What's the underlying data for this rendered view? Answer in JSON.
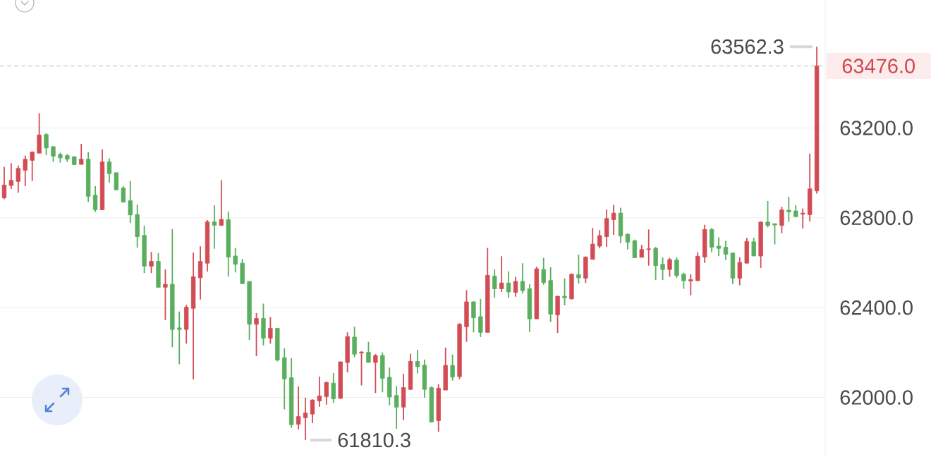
{
  "chart_data": {
    "type": "candlestick",
    "categories": [
      null,
      null,
      null,
      null,
      null,
      null,
      null,
      null,
      null,
      null,
      null,
      null,
      null,
      null,
      null,
      null,
      null,
      null,
      null,
      null,
      null,
      null,
      null,
      null,
      null,
      null,
      null,
      null,
      null,
      null,
      null,
      null,
      null,
      null,
      null,
      null,
      null,
      null,
      null,
      null,
      null,
      null,
      null,
      null,
      null,
      null,
      null,
      null,
      null,
      null,
      null,
      null,
      null,
      null,
      null,
      null,
      null,
      null,
      null,
      null,
      null,
      null,
      null,
      null,
      null,
      null,
      null,
      null,
      null,
      null,
      null,
      null,
      null,
      null,
      null,
      null,
      null,
      null,
      null,
      null,
      null,
      null,
      null,
      null,
      null,
      null,
      null,
      null,
      null,
      null,
      null,
      null,
      null,
      null,
      null,
      null,
      null,
      null,
      null,
      null,
      null,
      null,
      null,
      null,
      null,
      null,
      null,
      null,
      null,
      null,
      null,
      null,
      null,
      null,
      null,
      null,
      null
    ],
    "ohlc": [
      [
        62889,
        63027,
        62883,
        62946
      ],
      [
        62944,
        63044,
        62928,
        62967
      ],
      [
        62962,
        63033,
        62912,
        63020
      ],
      [
        63012,
        63077,
        62941,
        63061
      ],
      [
        63056,
        63096,
        62964,
        63093
      ],
      [
        63088,
        63266,
        63088,
        63169
      ],
      [
        63171,
        63177,
        63079,
        63111
      ],
      [
        63117,
        63119,
        63049,
        63075
      ],
      [
        63082,
        63090,
        63046,
        63067
      ],
      [
        63077,
        63084,
        63048,
        63061
      ],
      [
        63072,
        63074,
        63035,
        63037
      ],
      [
        63038,
        63129,
        63038,
        63061
      ],
      [
        63061,
        63093,
        62871,
        62896
      ],
      [
        62901,
        62941,
        62826,
        62836
      ],
      [
        62836,
        63105,
        62836,
        63049
      ],
      [
        63049,
        63065,
        62957,
        62997
      ],
      [
        63001,
        63001,
        62922,
        62925
      ],
      [
        62933,
        62941,
        62868,
        62870
      ],
      [
        62876,
        62964,
        62777,
        62813
      ],
      [
        62815,
        62859,
        62667,
        62716
      ],
      [
        62722,
        62765,
        62554,
        62585
      ],
      [
        62585,
        62648,
        62554,
        62606
      ],
      [
        62606,
        62643,
        62489,
        62491
      ],
      [
        62491,
        62570,
        62345,
        62504
      ],
      [
        62504,
        62750,
        62224,
        62303
      ],
      [
        62310,
        62383,
        62148,
        62303
      ],
      [
        62303,
        62413,
        62240,
        62402
      ],
      [
        62397,
        62645,
        62081,
        62538
      ],
      [
        62533,
        62673,
        62436,
        62606
      ],
      [
        62598,
        62790,
        62561,
        62782
      ],
      [
        62782,
        62856,
        62662,
        62767
      ],
      [
        62767,
        62968,
        62763,
        62793
      ],
      [
        62792,
        62828,
        62538,
        62625
      ],
      [
        62630,
        62666,
        62557,
        62593
      ],
      [
        62598,
        62617,
        62505,
        62507
      ],
      [
        62517,
        62517,
        62256,
        62326
      ],
      [
        62326,
        62376,
        62184,
        62352
      ],
      [
        62352,
        62418,
        62232,
        62264
      ],
      [
        62264,
        62358,
        62240,
        62308
      ],
      [
        62308,
        62310,
        62161,
        62167
      ],
      [
        62177,
        62219,
        61947,
        62083
      ],
      [
        62088,
        62175,
        61865,
        61879
      ],
      [
        61881,
        62049,
        61858,
        61915
      ],
      [
        61910,
        61999,
        61810.3,
        61931
      ],
      [
        61926,
        61992,
        61886,
        61989
      ],
      [
        61985,
        62093,
        61959,
        62007
      ],
      [
        62004,
        62072,
        61968,
        62067
      ],
      [
        62064,
        62109,
        61976,
        61994
      ],
      [
        61996,
        62159,
        61994,
        62159
      ],
      [
        62156,
        62290,
        62112,
        62271
      ],
      [
        62269,
        62315,
        62180,
        62193
      ],
      [
        62198,
        62206,
        62054,
        62202
      ],
      [
        62201,
        62248,
        62156,
        62156
      ],
      [
        62156,
        62193,
        62020,
        62187
      ],
      [
        62187,
        62201,
        62023,
        62085
      ],
      [
        62090,
        62133,
        61965,
        62002
      ],
      [
        62009,
        62051,
        61861,
        61957
      ],
      [
        61957,
        62106,
        61899,
        62044
      ],
      [
        62036,
        62195,
        62033,
        62161
      ],
      [
        62161,
        62212,
        62107,
        62137
      ],
      [
        62144,
        62169,
        61999,
        62036
      ],
      [
        62044,
        62049,
        61889,
        61891
      ],
      [
        61897,
        62059,
        61847,
        62041
      ],
      [
        62033,
        62222,
        62033,
        62143
      ],
      [
        62143,
        62191,
        62075,
        62091
      ],
      [
        62093,
        62331,
        62081,
        62326
      ],
      [
        62315,
        62478,
        62248,
        62426
      ],
      [
        62426,
        62428,
        62290,
        62355
      ],
      [
        62360,
        62439,
        62269,
        62290
      ],
      [
        62290,
        62666,
        62290,
        62544
      ],
      [
        62541,
        62570,
        62444,
        62484
      ],
      [
        62484,
        62629,
        62470,
        62510
      ],
      [
        62510,
        62562,
        62444,
        62470
      ],
      [
        62468,
        62538,
        62449,
        62517
      ],
      [
        62517,
        62598,
        62463,
        62476
      ],
      [
        62484,
        62504,
        62292,
        62350
      ],
      [
        62350,
        62582,
        62350,
        62573
      ],
      [
        62570,
        62622,
        62502,
        62512
      ],
      [
        62521,
        62580,
        62336,
        62371
      ],
      [
        62368,
        62452,
        62287,
        62451
      ],
      [
        62451,
        62531,
        62410,
        62444
      ],
      [
        62439,
        62552,
        62437,
        62549
      ],
      [
        62547,
        62636,
        62507,
        62533
      ],
      [
        62531,
        62629,
        62510,
        62625
      ],
      [
        62615,
        62755,
        62615,
        62683
      ],
      [
        62674,
        62745,
        62664,
        62721
      ],
      [
        62716,
        62837,
        62671,
        62797
      ],
      [
        62792,
        62858,
        62724,
        62821
      ],
      [
        62821,
        62845,
        62687,
        62719
      ],
      [
        62727,
        62730,
        62659,
        62692
      ],
      [
        62698,
        62703,
        62622,
        62622
      ],
      [
        62624,
        62680,
        62624,
        62659
      ],
      [
        62659,
        62748,
        62587,
        62662
      ],
      [
        62664,
        62671,
        62523,
        62587
      ],
      [
        62593,
        62624,
        62523,
        62570
      ],
      [
        62570,
        62622,
        62538,
        62614
      ],
      [
        62612,
        62624,
        62533,
        62543
      ],
      [
        62549,
        62556,
        62484,
        62520
      ],
      [
        62519,
        62549,
        62455,
        62525
      ],
      [
        62520,
        62646,
        62520,
        62629
      ],
      [
        62625,
        62769,
        62599,
        62748
      ],
      [
        62748,
        62755,
        62646,
        62669
      ],
      [
        62674,
        62713,
        62629,
        62664
      ],
      [
        62669,
        62698,
        62612,
        62638
      ],
      [
        62643,
        62646,
        62505,
        62531
      ],
      [
        62531,
        62624,
        62500,
        62601
      ],
      [
        62598,
        62711,
        62598,
        62695
      ],
      [
        62693,
        62711,
        62630,
        62630
      ],
      [
        62630,
        62784,
        62577,
        62781
      ],
      [
        62781,
        62875,
        62758,
        62766
      ],
      [
        62774,
        62774,
        62682,
        62768
      ],
      [
        62766,
        62849,
        62732,
        62835
      ],
      [
        62834,
        62894,
        62782,
        62826
      ],
      [
        62831,
        62856,
        62805,
        62805
      ],
      [
        62816,
        62842,
        62753,
        62821
      ],
      [
        62814,
        63086,
        62784,
        62929
      ],
      [
        62920,
        63562.3,
        62908,
        63476.0
      ]
    ],
    "colors": [
      "#d24c55",
      "#d24c55",
      "#d24c55",
      "#d24c55",
      "#d24c55",
      "#d24c55",
      "#5aaf5f",
      "#5aaf5f",
      "#5aaf5f",
      "#5aaf5f",
      "#5aaf5f",
      "#d24c55",
      "#5aaf5f",
      "#5aaf5f",
      "#d24c55",
      "#5aaf5f",
      "#5aaf5f",
      "#5aaf5f",
      "#5aaf5f",
      "#5aaf5f",
      "#5aaf5f",
      "#d24c55",
      "#5aaf5f",
      "#d24c55",
      "#5aaf5f",
      "#5aaf5f",
      "#d24c55",
      "#d24c55",
      "#d24c55",
      "#d24c55",
      "#5aaf5f",
      "#d24c55",
      "#5aaf5f",
      "#5aaf5f",
      "#5aaf5f",
      "#5aaf5f",
      "#d24c55",
      "#5aaf5f",
      "#d24c55",
      "#5aaf5f",
      "#5aaf5f",
      "#5aaf5f",
      "#d24c55",
      "#d24c55",
      "#d24c55",
      "#d24c55",
      "#d24c55",
      "#5aaf5f",
      "#d24c55",
      "#d24c55",
      "#5aaf5f",
      "#d24c55",
      "#5aaf5f",
      "#d24c55",
      "#5aaf5f",
      "#5aaf5f",
      "#5aaf5f",
      "#d24c55",
      "#d24c55",
      "#5aaf5f",
      "#5aaf5f",
      "#5aaf5f",
      "#d24c55",
      "#d24c55",
      "#5aaf5f",
      "#d24c55",
      "#d24c55",
      "#5aaf5f",
      "#5aaf5f",
      "#d24c55",
      "#5aaf5f",
      "#d24c55",
      "#5aaf5f",
      "#d24c55",
      "#5aaf5f",
      "#5aaf5f",
      "#d24c55",
      "#5aaf5f",
      "#5aaf5f",
      "#d24c55",
      "#5aaf5f",
      "#d24c55",
      "#5aaf5f",
      "#d24c55",
      "#d24c55",
      "#d24c55",
      "#d24c55",
      "#d24c55",
      "#5aaf5f",
      "#5aaf5f",
      "#5aaf5f",
      "#d24c55",
      "#d24c55",
      "#5aaf5f",
      "#5aaf5f",
      "#d24c55",
      "#5aaf5f",
      "#5aaf5f",
      "#d24c55",
      "#d24c55",
      "#d24c55",
      "#5aaf5f",
      "#5aaf5f",
      "#5aaf5f",
      "#5aaf5f",
      "#d24c55",
      "#d24c55",
      "#5aaf5f",
      "#d24c55",
      "#5aaf5f",
      "#5aaf5f",
      "#d24c55",
      "#5aaf5f",
      "#5aaf5f",
      "#d24c55",
      "#d24c55",
      "#d24c55"
    ],
    "ylim": [
      61735,
      63770
    ],
    "yticks": [
      {
        "value": 62000,
        "label": "62000.0"
      },
      {
        "value": 62400,
        "label": "62400.0"
      },
      {
        "value": 62800,
        "label": "62800.0"
      },
      {
        "value": 63200,
        "label": "63200.0"
      }
    ],
    "grid": "y",
    "ref_lines": [
      {
        "axis": "y",
        "value": 63476.0,
        "label": "63476.0",
        "color": "#b8b8b8",
        "line_style": "dashed"
      }
    ],
    "annotations": [
      "63562.3",
      "61810.3"
    ]
  }
}
